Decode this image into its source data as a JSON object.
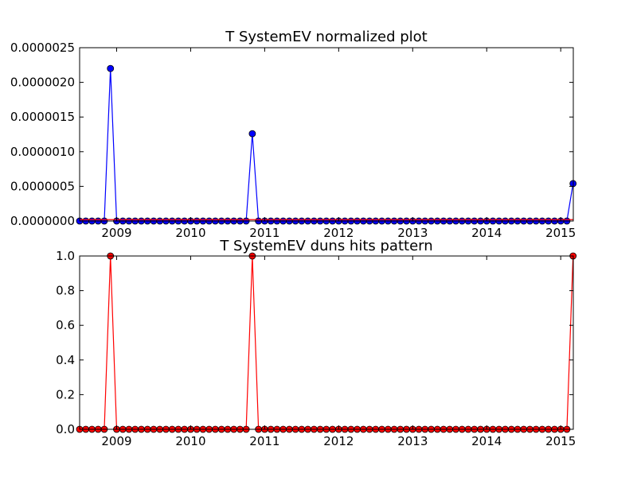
{
  "chart_data": [
    {
      "type": "line",
      "title": "T SystemEV normalized plot",
      "xlabel": "",
      "ylabel": "",
      "x_axis": "date (monthly)",
      "xlim": [
        2008.5,
        2015.17
      ],
      "ylim": [
        0,
        2.5e-06
      ],
      "x_tick_labels": [
        "2009",
        "2010",
        "2011",
        "2012",
        "2013",
        "2014",
        "2015"
      ],
      "y_tick_labels": [
        "0.0000000",
        "0.0000005",
        "0.0000010",
        "0.0000015",
        "0.0000020",
        "0.0000025"
      ],
      "grid": false,
      "legend": "none",
      "series": [
        {
          "color": "#0000ff",
          "marker": "circle",
          "x": [
            "2008-07",
            "2008-08",
            "2008-09",
            "2008-10",
            "2008-11",
            "2008-12",
            "2009-01",
            "2009-02",
            "2009-03",
            "2009-04",
            "2009-05",
            "2009-06",
            "2009-07",
            "2009-08",
            "2009-09",
            "2009-10",
            "2009-11",
            "2009-12",
            "2010-01",
            "2010-02",
            "2010-03",
            "2010-04",
            "2010-05",
            "2010-06",
            "2010-07",
            "2010-08",
            "2010-09",
            "2010-10",
            "2010-11",
            "2010-12",
            "2011-01",
            "2011-02",
            "2011-03",
            "2011-04",
            "2011-05",
            "2011-06",
            "2011-07",
            "2011-08",
            "2011-09",
            "2011-10",
            "2011-11",
            "2011-12",
            "2012-01",
            "2012-02",
            "2012-03",
            "2012-04",
            "2012-05",
            "2012-06",
            "2012-07",
            "2012-08",
            "2012-09",
            "2012-10",
            "2012-11",
            "2012-12",
            "2013-01",
            "2013-02",
            "2013-03",
            "2013-04",
            "2013-05",
            "2013-06",
            "2013-07",
            "2013-08",
            "2013-09",
            "2013-10",
            "2013-11",
            "2013-12",
            "2014-01",
            "2014-02",
            "2014-03",
            "2014-04",
            "2014-05",
            "2014-06",
            "2014-07",
            "2014-08",
            "2014-09",
            "2014-10",
            "2014-11",
            "2014-12",
            "2015-01",
            "2015-02",
            "2015-03"
          ],
          "y": [
            0,
            0,
            0,
            0,
            0,
            2.2e-06,
            0,
            0,
            0,
            0,
            0,
            0,
            0,
            0,
            0,
            0,
            0,
            0,
            0,
            0,
            0,
            0,
            0,
            0,
            0,
            0,
            0,
            0,
            1.26e-06,
            0,
            0,
            0,
            0,
            0,
            0,
            0,
            0,
            0,
            0,
            0,
            0,
            0,
            0,
            0,
            0,
            0,
            0,
            0,
            0,
            0,
            0,
            0,
            0,
            0,
            0,
            0,
            0,
            0,
            0,
            0,
            0,
            0,
            0,
            0,
            0,
            0,
            0,
            0,
            0,
            0,
            0,
            0,
            0,
            0,
            0,
            0,
            0,
            0,
            0,
            0,
            5.4e-07
          ]
        },
        {
          "color": "#ff0000",
          "marker": "none",
          "x_range": [
            "2008-07",
            "2015-03"
          ],
          "y": [
            2e-08,
            2e-08
          ]
        }
      ]
    },
    {
      "type": "line",
      "title": "T SystemEV duns hits pattern",
      "xlabel": "",
      "ylabel": "",
      "x_axis": "date (monthly)",
      "xlim": [
        2008.5,
        2015.17
      ],
      "ylim": [
        0,
        1
      ],
      "x_tick_labels": [
        "2009",
        "2010",
        "2011",
        "2012",
        "2013",
        "2014",
        "2015"
      ],
      "y_tick_labels": [
        "0.0",
        "0.2",
        "0.4",
        "0.6",
        "0.8",
        "1.0"
      ],
      "grid": false,
      "legend": "none",
      "series": [
        {
          "color": "#ff0000",
          "marker": "circle",
          "x": [
            "2008-07",
            "2008-08",
            "2008-09",
            "2008-10",
            "2008-11",
            "2008-12",
            "2009-01",
            "2009-02",
            "2009-03",
            "2009-04",
            "2009-05",
            "2009-06",
            "2009-07",
            "2009-08",
            "2009-09",
            "2009-10",
            "2009-11",
            "2009-12",
            "2010-01",
            "2010-02",
            "2010-03",
            "2010-04",
            "2010-05",
            "2010-06",
            "2010-07",
            "2010-08",
            "2010-09",
            "2010-10",
            "2010-11",
            "2010-12",
            "2011-01",
            "2011-02",
            "2011-03",
            "2011-04",
            "2011-05",
            "2011-06",
            "2011-07",
            "2011-08",
            "2011-09",
            "2011-10",
            "2011-11",
            "2011-12",
            "2012-01",
            "2012-02",
            "2012-03",
            "2012-04",
            "2012-05",
            "2012-06",
            "2012-07",
            "2012-08",
            "2012-09",
            "2012-10",
            "2012-11",
            "2012-12",
            "2013-01",
            "2013-02",
            "2013-03",
            "2013-04",
            "2013-05",
            "2013-06",
            "2013-07",
            "2013-08",
            "2013-09",
            "2013-10",
            "2013-11",
            "2013-12",
            "2014-01",
            "2014-02",
            "2014-03",
            "2014-04",
            "2014-05",
            "2014-06",
            "2014-07",
            "2014-08",
            "2014-09",
            "2014-10",
            "2014-11",
            "2014-12",
            "2015-01",
            "2015-02",
            "2015-03"
          ],
          "y": [
            0,
            0,
            0,
            0,
            0,
            1,
            0,
            0,
            0,
            0,
            0,
            0,
            0,
            0,
            0,
            0,
            0,
            0,
            0,
            0,
            0,
            0,
            0,
            0,
            0,
            0,
            0,
            0,
            1,
            0,
            0,
            0,
            0,
            0,
            0,
            0,
            0,
            0,
            0,
            0,
            0,
            0,
            0,
            0,
            0,
            0,
            0,
            0,
            0,
            0,
            0,
            0,
            0,
            0,
            0,
            0,
            0,
            0,
            0,
            0,
            0,
            0,
            0,
            0,
            0,
            0,
            0,
            0,
            0,
            0,
            0,
            0,
            0,
            0,
            0,
            0,
            0,
            0,
            0,
            0,
            1
          ]
        }
      ]
    }
  ]
}
